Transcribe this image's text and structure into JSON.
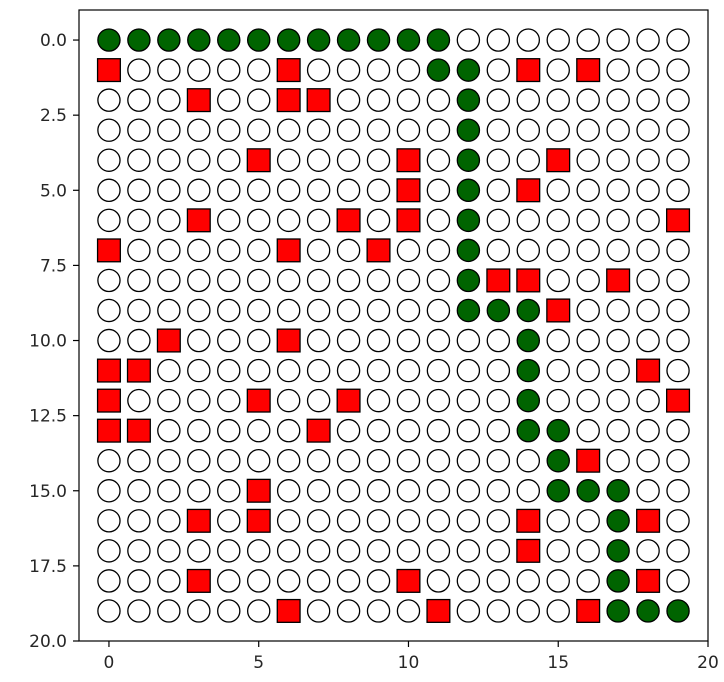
{
  "chart_data": {
    "type": "scatter",
    "title": "",
    "xlabel": "",
    "ylabel": "",
    "xlim": [
      -1,
      20
    ],
    "ylim": [
      20,
      -1
    ],
    "y_inverted": true,
    "grid": false,
    "x_ticks": [
      0,
      5,
      10,
      15,
      20
    ],
    "x_tick_labels": [
      "0",
      "5",
      "10",
      "15",
      "20"
    ],
    "y_ticks": [
      0.0,
      2.5,
      5.0,
      7.5,
      10.0,
      12.5,
      15.0,
      17.5,
      20.0
    ],
    "y_tick_labels": [
      "0.0",
      "2.5",
      "5.0",
      "7.5",
      "10.0",
      "12.5",
      "15.0",
      "17.5",
      "20.0"
    ],
    "grid_size": [
      20,
      20
    ],
    "colors": {
      "path": "#006400",
      "obstacle": "#ff0000",
      "empty": "#ffffff",
      "edge": "#000000"
    },
    "series": [
      {
        "marker": "circle",
        "color": "#006400",
        "points": [
          [
            0,
            0
          ],
          [
            1,
            0
          ],
          [
            2,
            0
          ],
          [
            3,
            0
          ],
          [
            4,
            0
          ],
          [
            5,
            0
          ],
          [
            6,
            0
          ],
          [
            7,
            0
          ],
          [
            8,
            0
          ],
          [
            9,
            0
          ],
          [
            10,
            0
          ],
          [
            11,
            0
          ],
          [
            11,
            1
          ],
          [
            12,
            1
          ],
          [
            12,
            2
          ],
          [
            12,
            3
          ],
          [
            12,
            4
          ],
          [
            12,
            5
          ],
          [
            12,
            6
          ],
          [
            12,
            7
          ],
          [
            12,
            8
          ],
          [
            12,
            9
          ],
          [
            13,
            9
          ],
          [
            14,
            9
          ],
          [
            14,
            10
          ],
          [
            14,
            11
          ],
          [
            14,
            12
          ],
          [
            14,
            13
          ],
          [
            15,
            13
          ],
          [
            15,
            14
          ],
          [
            15,
            15
          ],
          [
            16,
            15
          ],
          [
            17,
            15
          ],
          [
            17,
            16
          ],
          [
            17,
            17
          ],
          [
            17,
            18
          ],
          [
            17,
            19
          ],
          [
            18,
            19
          ],
          [
            19,
            19
          ]
        ]
      },
      {
        "marker": "square",
        "color": "#ff0000",
        "points": [
          [
            0,
            1
          ],
          [
            6,
            1
          ],
          [
            14,
            1
          ],
          [
            16,
            1
          ],
          [
            3,
            2
          ],
          [
            6,
            2
          ],
          [
            7,
            2
          ],
          [
            5,
            4
          ],
          [
            10,
            4
          ],
          [
            15,
            4
          ],
          [
            10,
            5
          ],
          [
            14,
            5
          ],
          [
            3,
            6
          ],
          [
            8,
            6
          ],
          [
            10,
            6
          ],
          [
            19,
            6
          ],
          [
            0,
            7
          ],
          [
            6,
            7
          ],
          [
            9,
            7
          ],
          [
            13,
            8
          ],
          [
            14,
            8
          ],
          [
            17,
            8
          ],
          [
            15,
            9
          ],
          [
            2,
            10
          ],
          [
            6,
            10
          ],
          [
            0,
            11
          ],
          [
            1,
            11
          ],
          [
            18,
            11
          ],
          [
            0,
            12
          ],
          [
            5,
            12
          ],
          [
            8,
            12
          ],
          [
            19,
            12
          ],
          [
            0,
            13
          ],
          [
            1,
            13
          ],
          [
            7,
            13
          ],
          [
            16,
            14
          ],
          [
            5,
            15
          ],
          [
            3,
            16
          ],
          [
            5,
            16
          ],
          [
            14,
            16
          ],
          [
            18,
            16
          ],
          [
            14,
            17
          ],
          [
            3,
            18
          ],
          [
            10,
            18
          ],
          [
            18,
            18
          ],
          [
            6,
            19
          ],
          [
            11,
            19
          ],
          [
            16,
            19
          ]
        ]
      }
    ]
  }
}
